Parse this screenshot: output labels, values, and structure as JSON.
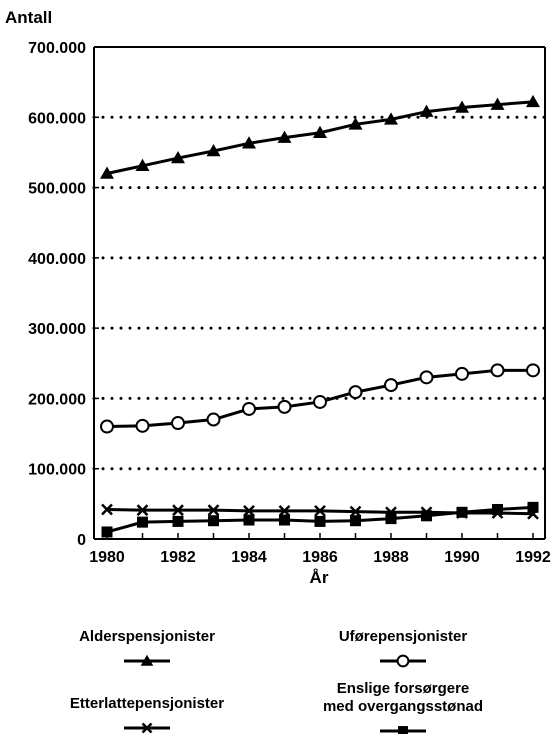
{
  "chart_data": {
    "type": "line",
    "ylabel": "Antall",
    "xlabel": "År",
    "x": [
      1980,
      1981,
      1982,
      1983,
      1984,
      1985,
      1986,
      1987,
      1988,
      1989,
      1990,
      1991,
      1992
    ],
    "xticks": [
      "1980",
      "1982",
      "1984",
      "1986",
      "1988",
      "1990",
      "1992"
    ],
    "xlim": [
      1980,
      1992
    ],
    "ylim": [
      0,
      700000
    ],
    "yticks": [
      "0",
      "100.000",
      "200.000",
      "300.000",
      "400.000",
      "500.000",
      "600.000",
      "700.000"
    ],
    "grid": "horizontal dotted",
    "legend_position": "bottom",
    "series": [
      {
        "name": "Alderspensjonister",
        "marker": "triangle",
        "values": [
          520000,
          531000,
          542000,
          552000,
          563000,
          571000,
          578000,
          590000,
          597000,
          608000,
          614000,
          618000,
          622000
        ]
      },
      {
        "name": "Uførepensjonister",
        "marker": "circle",
        "values": [
          160000,
          161000,
          165000,
          170000,
          185000,
          188000,
          195000,
          209000,
          219000,
          230000,
          235000,
          240000,
          240000
        ]
      },
      {
        "name": "Etterlattepensjonister",
        "marker": "x",
        "values": [
          42000,
          41000,
          41000,
          41000,
          40000,
          40000,
          40000,
          39000,
          38000,
          38000,
          37000,
          37000,
          36000
        ]
      },
      {
        "name": "Enslige forsørgere med overgangsstønad",
        "marker": "square",
        "values": [
          10000,
          24000,
          25000,
          26000,
          27000,
          27000,
          25000,
          26000,
          29000,
          33000,
          38000,
          42000,
          45000
        ]
      }
    ]
  },
  "legend": [
    {
      "lines": [
        "Alderspensjonister"
      ],
      "marker": "triangle"
    },
    {
      "lines": [
        "Uførepensjonister"
      ],
      "marker": "circle"
    },
    {
      "lines": [
        "Etterlattepensjonister"
      ],
      "marker": "x"
    },
    {
      "lines": [
        "Enslige forsørgere",
        "med overgangsstønad"
      ],
      "marker": "square"
    }
  ]
}
